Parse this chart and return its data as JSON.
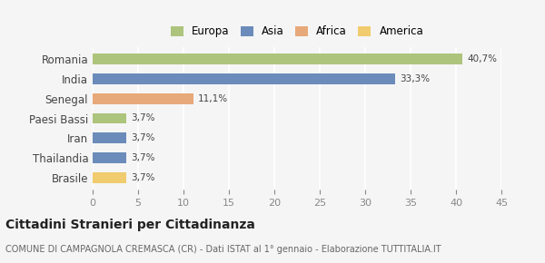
{
  "categories": [
    "Romania",
    "India",
    "Senegal",
    "Paesi Bassi",
    "Iran",
    "Thailandia",
    "Brasile"
  ],
  "values": [
    40.7,
    33.3,
    11.1,
    3.7,
    3.7,
    3.7,
    3.7
  ],
  "labels": [
    "40,7%",
    "33,3%",
    "11,1%",
    "3,7%",
    "3,7%",
    "3,7%",
    "3,7%"
  ],
  "colors": [
    "#adc47d",
    "#6b8cba",
    "#e8a97a",
    "#adc47d",
    "#6b8cba",
    "#6b8cba",
    "#f0cc6e"
  ],
  "legend_items": [
    {
      "label": "Europa",
      "color": "#adc47d"
    },
    {
      "label": "Asia",
      "color": "#6b8cba"
    },
    {
      "label": "Africa",
      "color": "#e8a97a"
    },
    {
      "label": "America",
      "color": "#f0cc6e"
    }
  ],
  "xlim": [
    0,
    45
  ],
  "xticks": [
    0,
    5,
    10,
    15,
    20,
    25,
    30,
    35,
    40,
    45
  ],
  "title": "Cittadini Stranieri per Cittadinanza",
  "subtitle": "COMUNE DI CAMPAGNOLA CREMASCA (CR) - Dati ISTAT al 1° gennaio - Elaborazione TUTTITALIA.IT",
  "bg_color": "#f5f5f5",
  "grid_color": "#ffffff",
  "bar_height": 0.55
}
